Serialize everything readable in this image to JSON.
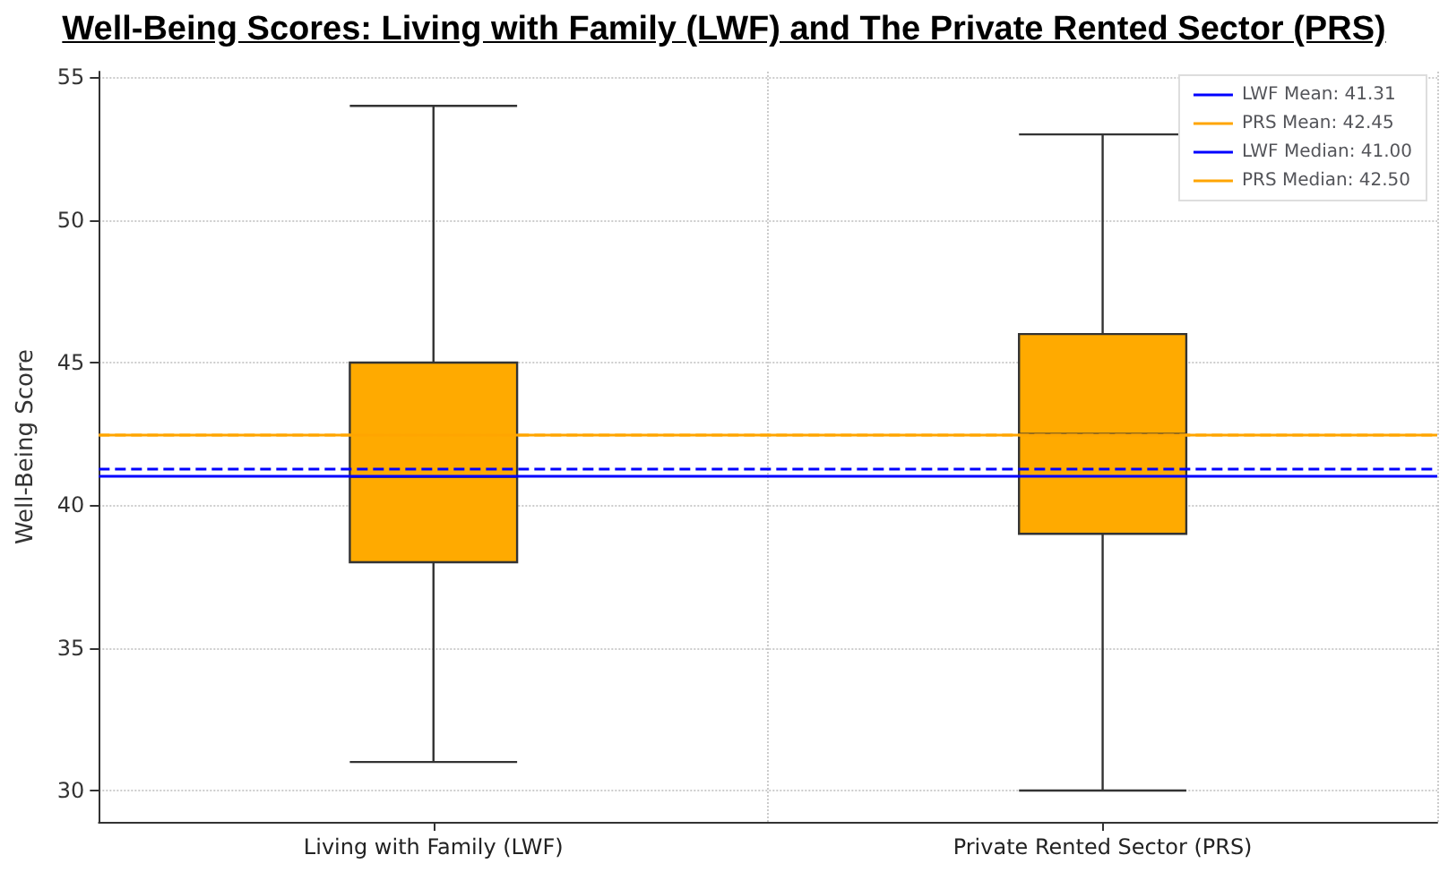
{
  "chart_data": {
    "type": "box",
    "title": "Well-Being Scores: Living with Family (LWF) and The Private Rented Sector (PRS)",
    "ylabel": "Well-Being Score",
    "categories": [
      "Living with Family (LWF)",
      "Private Rented Sector (PRS)"
    ],
    "series": [
      {
        "color": "#ffaa00",
        "boxes": [
          {
            "low": 31,
            "q1": 38,
            "median": 41,
            "q3": 45,
            "high": 54
          },
          {
            "low": 30,
            "q1": 39,
            "median": 42.5,
            "q3": 46,
            "high": 53
          }
        ]
      }
    ],
    "ylim": [
      28.9,
      55.2
    ],
    "yticks": [
      30,
      35,
      40,
      45,
      50,
      55
    ],
    "grid": true,
    "legend": "top right",
    "ref_lines": [
      {
        "axis": "y",
        "value": 41.31,
        "label": "LWF Mean: 41.31",
        "color": "#0000ff",
        "line_style": "dashed"
      },
      {
        "axis": "y",
        "value": 42.45,
        "label": "PRS Mean: 42.45",
        "color": "#ffa500",
        "line_style": "dashed"
      },
      {
        "axis": "y",
        "value": 41.0,
        "label": "LWF Median: 41.00",
        "color": "#0000ff",
        "line_style": "solid"
      },
      {
        "axis": "y",
        "value": 42.5,
        "label": "PRS Median: 42.50",
        "color": "#ffa500",
        "line_style": "solid"
      }
    ]
  }
}
